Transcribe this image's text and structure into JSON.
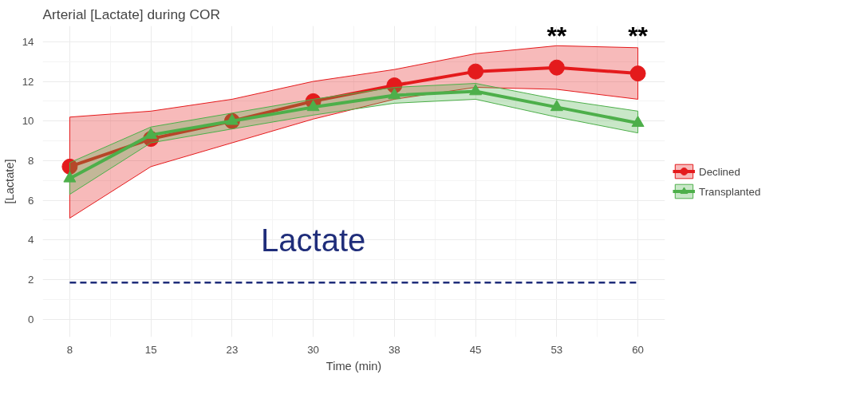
{
  "chart_data": {
    "type": "line",
    "title": "Arterial [Lactate] during COR",
    "xlabel": "Time (min)",
    "ylabel": "[Lactate]",
    "x": [
      7.5,
      15,
      22.5,
      30,
      37.5,
      45,
      52.5,
      60
    ],
    "xlim": [
      5,
      62.5
    ],
    "xticks": [
      {
        "value": 7.5,
        "label": "8"
      },
      15,
      {
        "value": 22.5,
        "label": "23"
      },
      30,
      {
        "value": 37.5,
        "label": "38"
      },
      45,
      {
        "value": 52.5,
        "label": "53"
      },
      60
    ],
    "ylim": [
      -0.9,
      14.8
    ],
    "yticks": [
      0,
      2,
      4,
      6,
      8,
      10,
      12,
      14
    ],
    "grid": true,
    "legend": "right",
    "series": [
      {
        "name": "Declined",
        "color": "#e41a1c",
        "marker": "circle",
        "values": [
          7.7,
          9.1,
          10.0,
          11.0,
          11.8,
          12.5,
          12.7,
          12.4
        ],
        "upper": [
          10.2,
          10.5,
          11.1,
          12.0,
          12.6,
          13.4,
          13.8,
          13.7
        ],
        "lower": [
          5.1,
          7.7,
          8.9,
          10.1,
          11.1,
          11.7,
          11.6,
          11.1
        ]
      },
      {
        "name": "Transplanted",
        "color": "#4daf4a",
        "marker": "triangle",
        "values": [
          7.1,
          9.3,
          10.0,
          10.7,
          11.3,
          11.5,
          10.7,
          9.9
        ],
        "upper": [
          7.9,
          9.7,
          10.4,
          11.1,
          11.7,
          11.9,
          11.1,
          10.5
        ],
        "lower": [
          6.3,
          8.9,
          9.6,
          10.3,
          10.9,
          11.1,
          10.2,
          9.4
        ]
      }
    ],
    "ref_lines": [
      {
        "axis": "y",
        "value": 1.85,
        "color": "#1f2d7a",
        "line_style": "dashed"
      }
    ],
    "annotations": [
      "Lactate",
      "**",
      "**"
    ]
  }
}
